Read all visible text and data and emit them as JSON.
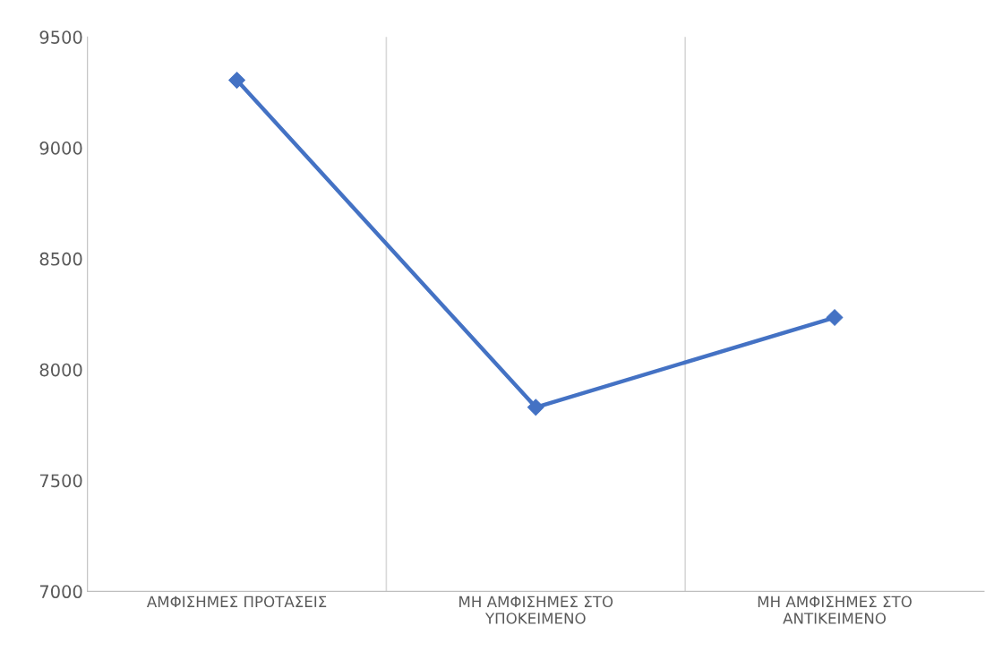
{
  "chart_data": {
    "type": "line",
    "categories": [
      "ΑΜΦΙΣΗΜΕΣ ΠΡΟΤΑΣΕΙΣ",
      "ΜΗ ΑΜΦΙΣΗΜΕΣ ΣΤΟ\nΥΠΟΚΕΙΜΕΝΟ",
      "ΜΗ ΑΜΦΙΣΗΜΕΣ ΣΤΟ\nΑΝΤΙΚΕΙΜΕΝΟ"
    ],
    "series": [
      {
        "color": "#4472c4",
        "values": [
          9305,
          7830,
          8235
        ]
      }
    ],
    "ylim": [
      7000,
      9500
    ],
    "yticks": [
      7000,
      7500,
      8000,
      8500,
      9000,
      9500
    ],
    "grid": "x",
    "marker": "diamond",
    "line_style": "solid"
  }
}
